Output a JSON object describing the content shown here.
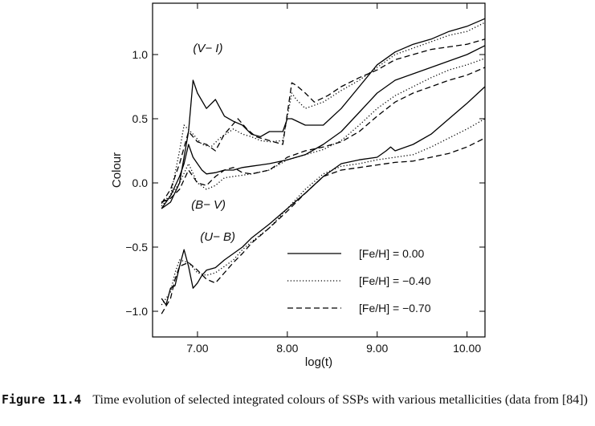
{
  "chart_data": {
    "type": "line",
    "xlabel": "log(t)",
    "ylabel": "Colour",
    "xlim": [
      6.5,
      10.2
    ],
    "ylim": [
      -1.2,
      1.4
    ],
    "xticks": [
      7.0,
      8.0,
      9.0,
      10.0
    ],
    "xtick_labels": [
      "7.00",
      "8.00",
      "9.00",
      "10.00"
    ],
    "yticks": [
      -1.0,
      -0.5,
      0.0,
      0.5,
      1.0
    ],
    "ytick_labels": [
      "−1.0",
      "−0.5",
      "0.0",
      "0.5",
      "1.0"
    ],
    "grid": false,
    "legend_position": "lower-right",
    "legend": [
      {
        "style": "solid",
        "label": "[Fe/H] = 0.00"
      },
      {
        "style": "dotted",
        "label": "[Fe/H] = −0.40"
      },
      {
        "style": "dashed",
        "label": "[Fe/H] = −0.70"
      }
    ],
    "annotations": [
      {
        "text": "(V− I)",
        "x": 6.95,
        "y": 1.02
      },
      {
        "text": "(B− V)",
        "x": 6.93,
        "y": -0.2
      },
      {
        "text": "(U− B)",
        "x": 7.03,
        "y": -0.45
      }
    ],
    "series": [
      {
        "group": "(V− I)",
        "style": "solid",
        "x": [
          6.6,
          6.7,
          6.8,
          6.9,
          6.95,
          7.0,
          7.1,
          7.2,
          7.3,
          7.4,
          7.5,
          7.6,
          7.7,
          7.8,
          7.95,
          8.0,
          8.05,
          8.2,
          8.4,
          8.6,
          8.8,
          9.0,
          9.2,
          9.4,
          9.6,
          9.8,
          10.0,
          10.2
        ],
        "y": [
          -0.2,
          -0.15,
          0.0,
          0.4,
          0.8,
          0.7,
          0.58,
          0.65,
          0.52,
          0.48,
          0.45,
          0.38,
          0.36,
          0.4,
          0.4,
          0.5,
          0.5,
          0.45,
          0.45,
          0.58,
          0.75,
          0.92,
          1.02,
          1.08,
          1.12,
          1.18,
          1.22,
          1.28
        ]
      },
      {
        "group": "(V− I)",
        "style": "dotted",
        "x": [
          6.6,
          6.7,
          6.8,
          6.85,
          6.95,
          7.05,
          7.15,
          7.25,
          7.4,
          7.5,
          7.6,
          7.7,
          7.8,
          7.95,
          8.05,
          8.1,
          8.2,
          8.4,
          8.6,
          8.8,
          9.0,
          9.2,
          9.4,
          9.6,
          9.8,
          10.0,
          10.2
        ],
        "y": [
          -0.18,
          -0.1,
          0.25,
          0.45,
          0.38,
          0.3,
          0.28,
          0.35,
          0.42,
          0.38,
          0.36,
          0.33,
          0.32,
          0.33,
          0.7,
          0.65,
          0.58,
          0.63,
          0.72,
          0.8,
          0.9,
          1.0,
          1.05,
          1.1,
          1.15,
          1.18,
          1.25
        ]
      },
      {
        "group": "(V− I)",
        "style": "dashed",
        "x": [
          6.6,
          6.7,
          6.8,
          6.9,
          7.0,
          7.1,
          7.2,
          7.3,
          7.45,
          7.55,
          7.65,
          7.8,
          7.95,
          8.05,
          8.1,
          8.2,
          8.3,
          8.45,
          8.6,
          8.8,
          9.0,
          9.2,
          9.4,
          9.6,
          9.8,
          10.0,
          10.2
        ],
        "y": [
          -0.16,
          -0.05,
          0.15,
          0.4,
          0.32,
          0.3,
          0.25,
          0.38,
          0.5,
          0.42,
          0.36,
          0.33,
          0.3,
          0.78,
          0.76,
          0.7,
          0.63,
          0.68,
          0.75,
          0.82,
          0.88,
          0.96,
          1.0,
          1.04,
          1.06,
          1.08,
          1.12
        ]
      },
      {
        "group": "(B− V)",
        "style": "solid",
        "x": [
          6.6,
          6.7,
          6.8,
          6.85,
          6.9,
          6.95,
          7.0,
          7.05,
          7.1,
          7.2,
          7.3,
          7.4,
          7.5,
          7.6,
          7.7,
          7.8,
          8.0,
          8.2,
          8.4,
          8.6,
          8.8,
          9.0,
          9.2,
          9.4,
          9.6,
          9.8,
          10.0,
          10.2
        ],
        "y": [
          -0.2,
          -0.1,
          0.05,
          0.15,
          0.3,
          0.2,
          0.15,
          0.1,
          0.07,
          0.08,
          0.1,
          0.1,
          0.12,
          0.13,
          0.14,
          0.15,
          0.18,
          0.22,
          0.3,
          0.4,
          0.55,
          0.7,
          0.8,
          0.85,
          0.9,
          0.95,
          1.0,
          1.07
        ]
      },
      {
        "group": "(B− V)",
        "style": "dotted",
        "x": [
          6.6,
          6.7,
          6.8,
          6.9,
          7.0,
          7.1,
          7.2,
          7.3,
          7.4,
          7.5,
          7.6,
          7.8,
          8.0,
          8.2,
          8.4,
          8.6,
          8.8,
          9.0,
          9.2,
          9.4,
          9.6,
          9.8,
          10.0,
          10.2
        ],
        "y": [
          -0.15,
          -0.1,
          0.0,
          0.15,
          0.0,
          -0.05,
          -0.02,
          0.04,
          0.05,
          0.06,
          0.07,
          0.1,
          0.18,
          0.22,
          0.26,
          0.33,
          0.45,
          0.58,
          0.68,
          0.75,
          0.82,
          0.88,
          0.92,
          0.97
        ]
      },
      {
        "group": "(B− V)",
        "style": "dashed",
        "x": [
          6.6,
          6.7,
          6.8,
          6.9,
          7.0,
          7.1,
          7.2,
          7.3,
          7.4,
          7.5,
          7.6,
          7.8,
          8.0,
          8.2,
          8.4,
          8.6,
          8.8,
          9.0,
          9.2,
          9.4,
          9.6,
          9.8,
          10.0,
          10.2
        ],
        "y": [
          -0.15,
          -0.12,
          -0.05,
          0.1,
          0.0,
          -0.02,
          0.05,
          0.1,
          0.12,
          0.08,
          0.07,
          0.1,
          0.2,
          0.25,
          0.28,
          0.32,
          0.4,
          0.52,
          0.63,
          0.7,
          0.75,
          0.8,
          0.84,
          0.9
        ]
      },
      {
        "group": "(U− B)",
        "style": "solid",
        "x": [
          6.6,
          6.65,
          6.7,
          6.75,
          6.8,
          6.85,
          6.9,
          6.95,
          7.0,
          7.05,
          7.1,
          7.2,
          7.3,
          7.4,
          7.5,
          7.6,
          7.8,
          8.0,
          8.2,
          8.4,
          8.6,
          8.8,
          9.0,
          9.1,
          9.15,
          9.2,
          9.4,
          9.6,
          9.8,
          10.0,
          10.2
        ],
        "y": [
          -0.9,
          -0.95,
          -0.82,
          -0.8,
          -0.65,
          -0.52,
          -0.65,
          -0.82,
          -0.78,
          -0.72,
          -0.68,
          -0.66,
          -0.6,
          -0.55,
          -0.5,
          -0.43,
          -0.32,
          -0.2,
          -0.08,
          0.05,
          0.15,
          0.18,
          0.2,
          0.25,
          0.28,
          0.25,
          0.3,
          0.38,
          0.5,
          0.62,
          0.75
        ]
      },
      {
        "group": "(U− B)",
        "style": "dotted",
        "x": [
          6.6,
          6.7,
          6.75,
          6.8,
          6.9,
          7.0,
          7.1,
          7.2,
          7.3,
          7.4,
          7.5,
          7.6,
          7.8,
          8.0,
          8.2,
          8.4,
          8.6,
          8.8,
          9.0,
          9.2,
          9.4,
          9.6,
          9.8,
          10.0,
          10.2
        ],
        "y": [
          -0.95,
          -0.85,
          -0.7,
          -0.6,
          -0.62,
          -0.7,
          -0.72,
          -0.7,
          -0.65,
          -0.6,
          -0.52,
          -0.46,
          -0.35,
          -0.2,
          -0.05,
          0.07,
          0.13,
          0.15,
          0.18,
          0.2,
          0.22,
          0.28,
          0.35,
          0.42,
          0.5
        ]
      },
      {
        "group": "(U− B)",
        "style": "dashed",
        "x": [
          6.6,
          6.7,
          6.75,
          6.8,
          6.9,
          7.0,
          7.1,
          7.2,
          7.3,
          7.4,
          7.5,
          7.6,
          7.8,
          8.0,
          8.2,
          8.4,
          8.6,
          8.8,
          9.0,
          9.2,
          9.4,
          9.6,
          9.8,
          10.0,
          10.2
        ],
        "y": [
          -1.02,
          -0.9,
          -0.75,
          -0.65,
          -0.62,
          -0.68,
          -0.75,
          -0.78,
          -0.7,
          -0.62,
          -0.55,
          -0.47,
          -0.35,
          -0.22,
          -0.08,
          0.05,
          0.1,
          0.12,
          0.14,
          0.16,
          0.17,
          0.2,
          0.23,
          0.28,
          0.35
        ]
      }
    ]
  },
  "caption": {
    "label": "Figure 11.4",
    "text": "Time evolution of selected integrated colours of SSPs with various metallicities (data from [84])"
  }
}
